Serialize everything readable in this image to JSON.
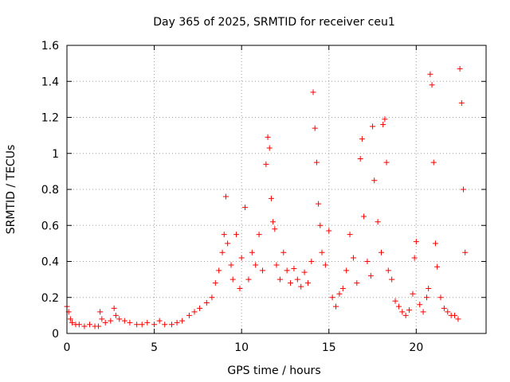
{
  "chart_data": {
    "type": "scatter",
    "title": "Day 365 of 2025, SRMTID for receiver ceu1",
    "xlabel": "GPS time / hours",
    "ylabel": "SRMTID / TECUs",
    "xlim": [
      0,
      24
    ],
    "ylim": [
      0,
      1.6
    ],
    "xticks": [
      0,
      5,
      10,
      15,
      20
    ],
    "xtick_labels": [
      "0",
      "5",
      "10",
      "15",
      "20"
    ],
    "yticks": [
      0,
      0.2,
      0.4,
      0.6,
      0.8,
      1,
      1.2,
      1.4,
      1.6
    ],
    "ytick_labels": [
      "0",
      "0.2",
      "0.4",
      "0.6",
      "0.8",
      "1",
      "1.2",
      "1.4",
      "1.6"
    ],
    "grid": true,
    "marker": "+",
    "marker_color": "#ff0000",
    "series": [
      {
        "name": "SRMTID",
        "x": [
          0.0,
          0.1,
          0.2,
          0.3,
          0.5,
          0.7,
          1.0,
          1.3,
          1.6,
          1.8,
          1.9,
          2.0,
          2.2,
          2.5,
          2.7,
          2.8,
          3.0,
          3.3,
          3.6,
          4.0,
          4.3,
          4.6,
          5.0,
          5.3,
          5.6,
          6.0,
          6.3,
          6.6,
          7.0,
          7.3,
          7.6,
          8.0,
          8.3,
          8.5,
          8.7,
          8.9,
          9.0,
          9.1,
          9.2,
          9.4,
          9.5,
          9.7,
          9.9,
          10.0,
          10.2,
          10.4,
          10.6,
          10.8,
          11.0,
          11.2,
          11.4,
          11.5,
          11.6,
          11.7,
          11.8,
          11.9,
          12.0,
          12.2,
          12.4,
          12.6,
          12.8,
          13.0,
          13.2,
          13.4,
          13.6,
          13.8,
          14.0,
          14.1,
          14.2,
          14.3,
          14.4,
          14.5,
          14.6,
          14.8,
          15.0,
          15.2,
          15.4,
          15.6,
          15.8,
          16.0,
          16.2,
          16.4,
          16.6,
          16.8,
          16.9,
          17.0,
          17.2,
          17.4,
          17.5,
          17.6,
          17.8,
          18.0,
          18.1,
          18.2,
          18.3,
          18.4,
          18.6,
          18.8,
          19.0,
          19.2,
          19.4,
          19.6,
          19.8,
          19.9,
          20.0,
          20.2,
          20.4,
          20.6,
          20.7,
          20.8,
          20.9,
          21.0,
          21.1,
          21.2,
          21.4,
          21.6,
          21.8,
          22.0,
          22.2,
          22.4,
          22.5,
          22.6,
          22.7,
          22.8
        ],
        "y": [
          0.15,
          0.12,
          0.08,
          0.06,
          0.05,
          0.05,
          0.04,
          0.05,
          0.04,
          0.04,
          0.12,
          0.08,
          0.06,
          0.07,
          0.14,
          0.1,
          0.08,
          0.07,
          0.06,
          0.05,
          0.05,
          0.06,
          0.05,
          0.07,
          0.05,
          0.05,
          0.06,
          0.07,
          0.1,
          0.12,
          0.14,
          0.17,
          0.2,
          0.28,
          0.35,
          0.45,
          0.55,
          0.76,
          0.5,
          0.38,
          0.3,
          0.55,
          0.25,
          0.42,
          0.7,
          0.3,
          0.45,
          0.38,
          0.55,
          0.35,
          0.94,
          1.09,
          1.03,
          0.75,
          0.62,
          0.58,
          0.38,
          0.3,
          0.45,
          0.35,
          0.28,
          0.36,
          0.3,
          0.26,
          0.34,
          0.28,
          0.4,
          1.34,
          1.14,
          0.95,
          0.72,
          0.6,
          0.45,
          0.38,
          0.57,
          0.2,
          0.15,
          0.22,
          0.25,
          0.35,
          0.55,
          0.42,
          0.28,
          0.97,
          1.08,
          0.65,
          0.4,
          0.32,
          1.15,
          0.85,
          0.62,
          0.45,
          1.16,
          1.19,
          0.95,
          0.35,
          0.3,
          0.18,
          0.15,
          0.12,
          0.1,
          0.13,
          0.22,
          0.42,
          0.51,
          0.16,
          0.12,
          0.2,
          0.25,
          1.44,
          1.38,
          0.95,
          0.5,
          0.37,
          0.2,
          0.14,
          0.12,
          0.1,
          0.1,
          0.08,
          1.47,
          1.28,
          0.8,
          0.45
        ]
      }
    ]
  }
}
